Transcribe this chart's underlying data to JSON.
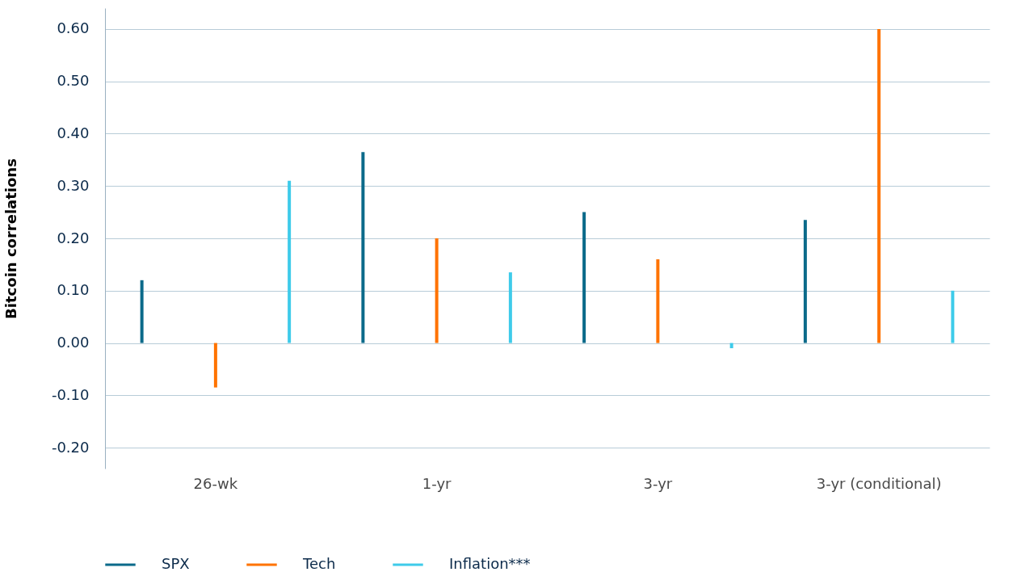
{
  "chart_data": {
    "type": "bar",
    "ylabel": "Bitcoin correlations",
    "categories": [
      "26-wk",
      "1-yr",
      "3-yr",
      "3-yr (conditional)"
    ],
    "series": [
      {
        "name": "SPX",
        "color": "#0b6a8a",
        "values": [
          0.12,
          0.365,
          0.25,
          0.235
        ]
      },
      {
        "name": "Tech",
        "color": "#ff7300",
        "values": [
          -0.085,
          0.2,
          0.16,
          0.6
        ]
      },
      {
        "name": "Inflation***",
        "color": "#3ecbea",
        "values": [
          0.31,
          0.135,
          -0.01,
          0.1
        ]
      }
    ],
    "ylim": [
      -0.24,
      0.64
    ],
    "yticks": [
      {
        "value": -0.2,
        "label": "-0.20"
      },
      {
        "value": -0.1,
        "label": "-0.10"
      },
      {
        "value": 0,
        "label": "0.00"
      },
      {
        "value": 0.1,
        "label": "0.10"
      },
      {
        "value": 0.2,
        "label": "0.20"
      },
      {
        "value": 0.3,
        "label": "0.30"
      },
      {
        "value": 0.4,
        "label": "0.40"
      },
      {
        "value": 0.5,
        "label": "0.50"
      },
      {
        "value": 0.6,
        "label": "0.60"
      }
    ],
    "grid": "y",
    "legend": "bottom left"
  }
}
